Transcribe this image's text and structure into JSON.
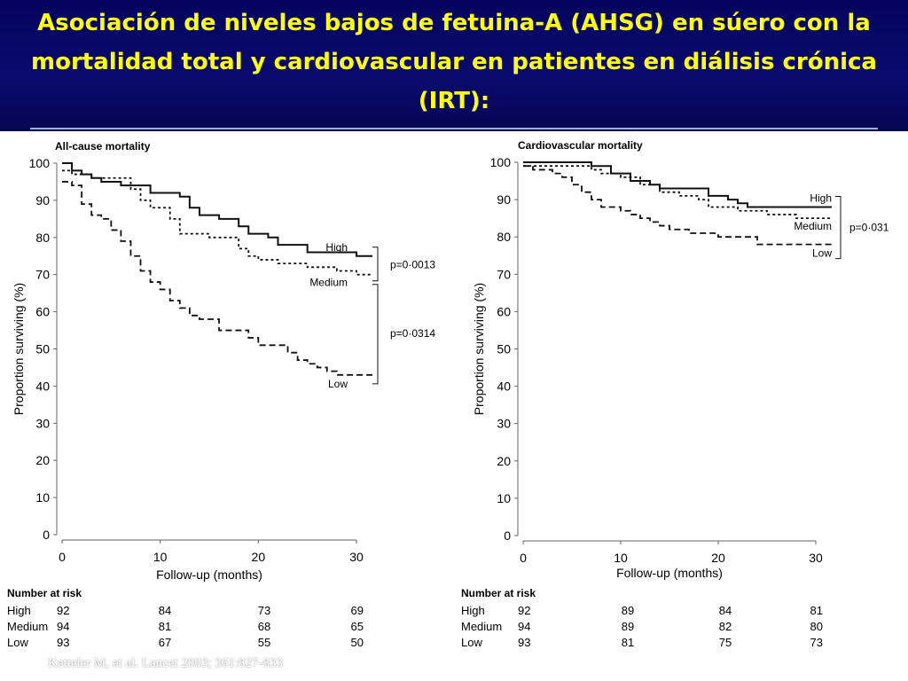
{
  "slide_title": "Asociación de niveles bajos de fetuina-A (AHSG) en súero con la mortalidad total y cardiovascular en patientes en diálisis crónica (IRT):",
  "citation": "Ketteler M, et al. Lancet 2003; 361:827-833",
  "chart_data": [
    {
      "type": "line",
      "step": true,
      "title": "All-cause mortality",
      "xlabel": "Follow-up (months)",
      "ylabel": "Proportion surviving (%)",
      "xlim": [
        0,
        30
      ],
      "ylim": [
        0,
        100
      ],
      "x_ticks": [
        0,
        10,
        20,
        30
      ],
      "y_ticks": [
        0,
        10,
        20,
        30,
        40,
        50,
        60,
        70,
        80,
        90,
        100
      ],
      "series": [
        {
          "name": "High",
          "style": "solid",
          "x": [
            0,
            1,
            2,
            3,
            4,
            6,
            9,
            12,
            13,
            14,
            16,
            18,
            19,
            21,
            22,
            25,
            30
          ],
          "y": [
            100,
            98,
            97,
            96,
            95,
            94,
            92,
            91,
            88,
            86,
            85,
            83,
            81,
            80,
            78,
            76,
            75
          ]
        },
        {
          "name": "Medium",
          "style": "dotted",
          "x": [
            0,
            1,
            3,
            7,
            8,
            9,
            11,
            12,
            15,
            18,
            19,
            20,
            22,
            25,
            28,
            30
          ],
          "y": [
            98,
            97,
            96,
            93,
            90,
            88,
            85,
            81,
            80,
            77,
            75,
            74,
            73,
            72,
            71,
            70
          ]
        },
        {
          "name": "Low",
          "style": "dashed",
          "x": [
            0,
            1,
            2,
            3,
            4,
            5,
            6,
            7,
            8,
            9,
            10,
            11,
            12,
            13,
            14,
            16,
            19,
            20,
            23,
            24,
            25,
            26,
            27,
            28,
            30
          ],
          "y": [
            95,
            94,
            89,
            86,
            85,
            82,
            79,
            75,
            71,
            68,
            66,
            63,
            61,
            59,
            58,
            55,
            53,
            51,
            49,
            47,
            46,
            45,
            44,
            43,
            43
          ]
        }
      ],
      "p_values": [
        "p=0·0013",
        "p=0·0314"
      ],
      "number_at_risk": {
        "header": "Number at risk",
        "times": [
          0,
          10,
          20,
          30
        ],
        "rows": [
          {
            "label": "High",
            "values": [
              "92",
              "84",
              "73",
              "69"
            ]
          },
          {
            "label": "Medium",
            "values": [
              "94",
              "81",
              "68",
              "65"
            ]
          },
          {
            "label": "Low",
            "values": [
              "93",
              "67",
              "55",
              "50"
            ]
          }
        ]
      }
    },
    {
      "type": "line",
      "step": true,
      "title": "Cardiovascular mortality",
      "xlabel": "Follow-up (months)",
      "ylabel": "Proportion surviving (%)",
      "xlim": [
        0,
        30
      ],
      "ylim": [
        0,
        100
      ],
      "x_ticks": [
        0,
        10,
        20,
        30
      ],
      "y_ticks": [
        0,
        10,
        20,
        30,
        40,
        50,
        60,
        70,
        80,
        90,
        100
      ],
      "series": [
        {
          "name": "High",
          "style": "solid",
          "x": [
            0,
            1,
            7,
            9,
            11,
            13,
            14,
            16,
            19,
            20,
            21,
            22,
            23,
            30
          ],
          "y": [
            100,
            100,
            99,
            97,
            95,
            94,
            93,
            93,
            91,
            91,
            90,
            89,
            88,
            88
          ]
        },
        {
          "name": "Medium",
          "style": "dotted",
          "x": [
            0,
            7,
            8,
            10,
            12,
            14,
            16,
            18,
            19,
            22,
            25,
            28,
            30
          ],
          "y": [
            99,
            98,
            97,
            96,
            94,
            92,
            91,
            90,
            88,
            87,
            86,
            85,
            85
          ]
        },
        {
          "name": "Low",
          "style": "dashed",
          "x": [
            0,
            1,
            3,
            4,
            5,
            6,
            7,
            8,
            9,
            10,
            11,
            12,
            13,
            14,
            15,
            17,
            20,
            24,
            30
          ],
          "y": [
            99,
            98,
            97,
            96,
            94,
            92,
            90,
            88,
            88,
            87,
            86,
            85,
            84,
            83,
            82,
            81,
            80,
            78,
            78
          ]
        }
      ],
      "p_values": [
        "p=0·031"
      ],
      "number_at_risk": {
        "header": "Number at risk",
        "times": [
          0,
          10,
          20,
          30
        ],
        "rows": [
          {
            "label": "High",
            "values": [
              "92",
              "89",
              "84",
              "81"
            ]
          },
          {
            "label": "Medium",
            "values": [
              "94",
              "89",
              "82",
              "80"
            ]
          },
          {
            "label": "Low",
            "values": [
              "93",
              "81",
              "75",
              "73"
            ]
          }
        ]
      }
    }
  ]
}
